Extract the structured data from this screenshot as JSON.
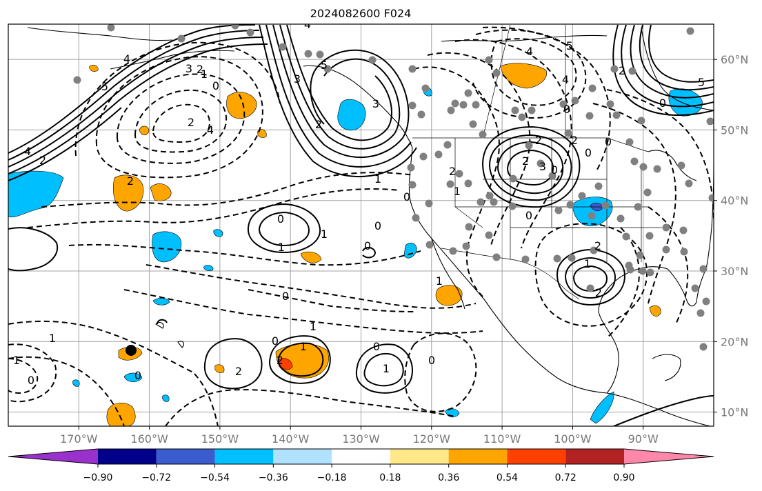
{
  "title": "2024082600 F024",
  "map": {
    "lon_range": [
      -180,
      -80
    ],
    "lat_range": [
      8,
      65
    ],
    "lon_ticks": [
      "170°W",
      "160°W",
      "150°W",
      "140°W",
      "130°W",
      "120°W",
      "110°W",
      "100°W",
      "90°W"
    ],
    "lat_ticks": [
      "60°N",
      "50°N",
      "40°N",
      "30°N",
      "20°N",
      "10°N"
    ],
    "grid": true,
    "colors": {
      "grid": "#a0a0a0",
      "tick_text": "#777777",
      "frame": "#000000"
    }
  },
  "colorbar": {
    "orientation": "horizontal",
    "extend": "both",
    "levels": [
      -0.9,
      -0.72,
      -0.54,
      -0.36,
      -0.18,
      0.18,
      0.36,
      0.54,
      0.72,
      0.9
    ],
    "tick_labels": [
      "−0.90",
      "−0.72",
      "−0.54",
      "−0.36",
      "−0.18",
      "0.18",
      "0.36",
      "0.54",
      "0.72",
      "0.90"
    ],
    "colors": [
      "#9932cc",
      "#00008b",
      "#3a5ccc",
      "#00bfff",
      "#b0e2ff",
      "#ffffff",
      "#ffe889",
      "#ffa500",
      "#ff4000",
      "#b22222",
      "#ff88aa"
    ]
  },
  "contour_labels": [
    "4",
    "2",
    "5",
    "4",
    "3",
    "2",
    "1",
    "0",
    "3",
    "2",
    "4",
    "2",
    "4",
    "5",
    "3",
    "4",
    "5",
    "4",
    "2",
    "5",
    "0",
    "0",
    "3",
    "2",
    "2",
    "2",
    "0",
    "0",
    "0",
    "0",
    "1",
    "2",
    "1",
    "0",
    "0",
    "1",
    "0",
    "1",
    "0",
    "2",
    "2",
    "2",
    "1",
    "0",
    "1",
    "1",
    "0",
    "0",
    "1",
    "0",
    "2",
    "1",
    "2",
    "1",
    "0",
    "1",
    "0"
  ],
  "markers": {
    "black_dot": {
      "lon": -165.3,
      "lat": 18.7
    }
  }
}
